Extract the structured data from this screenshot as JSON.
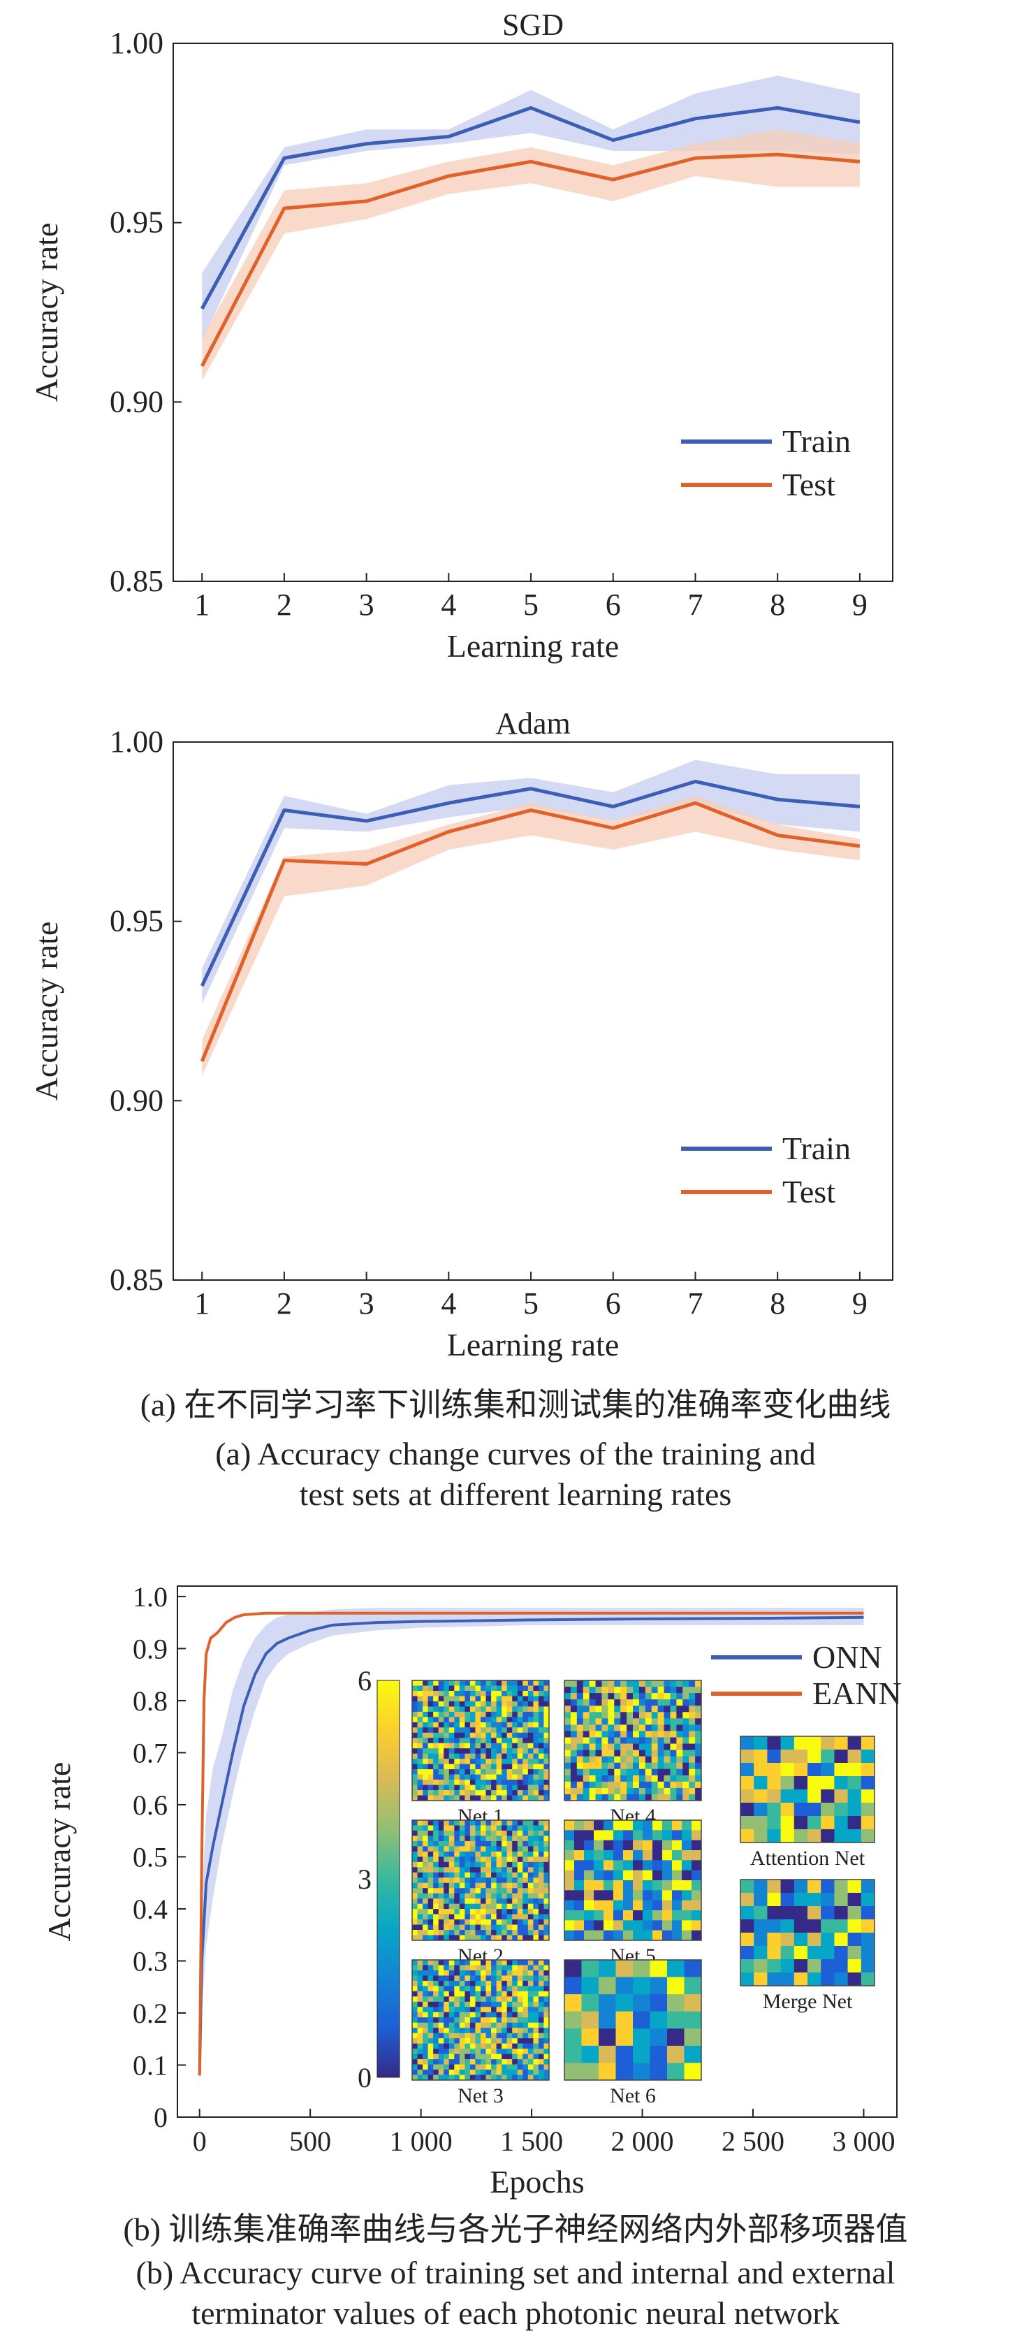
{
  "chart_data": [
    {
      "type": "line",
      "title": "SGD",
      "xlabel": "Learning rate",
      "ylabel": "Accuracy rate",
      "x": [
        1,
        2,
        3,
        4,
        5,
        6,
        7,
        8,
        9
      ],
      "xlim": [
        0.65,
        9.4
      ],
      "ylim": [
        0.85,
        1.0
      ],
      "yticks": [
        "0.85",
        "0.90",
        "0.95",
        "1.00"
      ],
      "legend_position": "lower-right",
      "series": [
        {
          "name": "Train",
          "color": "#3c5fb5",
          "band_color": "#c5cdf0",
          "values": [
            0.926,
            0.968,
            0.972,
            0.974,
            0.982,
            0.973,
            0.979,
            0.982,
            0.978
          ],
          "lower": [
            0.917,
            0.966,
            0.97,
            0.972,
            0.975,
            0.97,
            0.97,
            0.97,
            0.969
          ],
          "upper": [
            0.936,
            0.971,
            0.976,
            0.976,
            0.987,
            0.976,
            0.986,
            0.991,
            0.986
          ]
        },
        {
          "name": "Test",
          "color": "#e0622a",
          "band_color": "#f7cdb8",
          "values": [
            0.91,
            0.954,
            0.956,
            0.963,
            0.967,
            0.962,
            0.968,
            0.969,
            0.967
          ],
          "lower": [
            0.906,
            0.947,
            0.951,
            0.958,
            0.961,
            0.956,
            0.963,
            0.96,
            0.96
          ],
          "upper": [
            0.918,
            0.959,
            0.961,
            0.967,
            0.971,
            0.966,
            0.972,
            0.976,
            0.972
          ]
        }
      ]
    },
    {
      "type": "line",
      "title": "Adam",
      "xlabel": "Learning rate",
      "ylabel": "Accuracy rate",
      "x": [
        1,
        2,
        3,
        4,
        5,
        6,
        7,
        8,
        9
      ],
      "xlim": [
        0.65,
        9.4
      ],
      "ylim": [
        0.85,
        1.0
      ],
      "yticks": [
        "0.85",
        "0.90",
        "0.95",
        "1.00"
      ],
      "legend_position": "lower-right",
      "series": [
        {
          "name": "Train",
          "color": "#3c5fb5",
          "band_color": "#c5cdf0",
          "values": [
            0.932,
            0.981,
            0.978,
            0.983,
            0.987,
            0.982,
            0.989,
            0.984,
            0.982
          ],
          "lower": [
            0.927,
            0.976,
            0.975,
            0.979,
            0.982,
            0.978,
            0.983,
            0.977,
            0.975
          ],
          "upper": [
            0.937,
            0.985,
            0.98,
            0.988,
            0.99,
            0.986,
            0.995,
            0.991,
            0.991
          ]
        },
        {
          "name": "Test",
          "color": "#e0622a",
          "band_color": "#f7cdb8",
          "values": [
            0.911,
            0.967,
            0.966,
            0.975,
            0.981,
            0.976,
            0.983,
            0.974,
            0.971
          ],
          "lower": [
            0.907,
            0.957,
            0.96,
            0.97,
            0.974,
            0.97,
            0.975,
            0.97,
            0.967
          ],
          "upper": [
            0.917,
            0.968,
            0.97,
            0.977,
            0.983,
            0.978,
            0.985,
            0.977,
            0.973
          ]
        }
      ]
    },
    {
      "type": "line",
      "title": "",
      "xlabel": "Epochs",
      "ylabel": "Accuracy rate",
      "xlim": [
        -100,
        3150
      ],
      "ylim": [
        0,
        1.02
      ],
      "xticks": [
        0,
        500,
        1000,
        1500,
        2000,
        2500,
        3000
      ],
      "xtick_labels": [
        "0",
        "500",
        "1 000",
        "1 500",
        "2 000",
        "2 500",
        "3 000"
      ],
      "yticks": [
        "0",
        "0.1",
        "0.2",
        "0.3",
        "0.4",
        "0.5",
        "0.6",
        "0.7",
        "0.8",
        "0.9",
        "1.0"
      ],
      "legend_position": "top-right",
      "series": [
        {
          "name": "ONN",
          "color": "#3c5fb5",
          "band_color": "#c5cdf0",
          "x": [
            0,
            10,
            30,
            60,
            100,
            150,
            200,
            250,
            300,
            350,
            400,
            500,
            600,
            800,
            1000,
            1500,
            2000,
            2500,
            3000
          ],
          "values": [
            0.08,
            0.3,
            0.45,
            0.52,
            0.6,
            0.7,
            0.79,
            0.85,
            0.89,
            0.91,
            0.92,
            0.935,
            0.945,
            0.95,
            0.952,
            0.955,
            0.957,
            0.958,
            0.96
          ],
          "lower": [
            0.06,
            0.2,
            0.33,
            0.42,
            0.52,
            0.62,
            0.71,
            0.78,
            0.84,
            0.87,
            0.89,
            0.91,
            0.925,
            0.935,
            0.94,
            0.945,
            0.945,
            0.945,
            0.945
          ],
          "upper": [
            0.1,
            0.42,
            0.58,
            0.67,
            0.73,
            0.82,
            0.88,
            0.92,
            0.945,
            0.96,
            0.965,
            0.97,
            0.975,
            0.978,
            0.978,
            0.978,
            0.978,
            0.978,
            0.978
          ]
        },
        {
          "name": "EANN",
          "color": "#e0622a",
          "x": [
            0,
            10,
            20,
            30,
            50,
            80,
            120,
            160,
            200,
            300,
            500,
            1000,
            1500,
            2000,
            2500,
            3000
          ],
          "values": [
            0.08,
            0.5,
            0.8,
            0.89,
            0.92,
            0.93,
            0.95,
            0.96,
            0.965,
            0.968,
            0.968,
            0.968,
            0.968,
            0.968,
            0.968,
            0.968
          ]
        }
      ],
      "inset": {
        "colorbar_ticks": [
          "6",
          "3",
          "0"
        ],
        "panels": [
          "Net 1",
          "Net 2",
          "Net 3",
          "Net 4",
          "Net 5",
          "Net 6",
          "Attention Net",
          "Merge Net"
        ]
      }
    }
  ],
  "captions": {
    "a_cn": "(a) 在不同学习率下训练集和测试集的准确率变化曲线",
    "a_en_1": "(a) Accuracy change curves of the training and",
    "a_en_2": "test sets at different learning rates",
    "b_cn": "(b) 训练集准确率曲线与各光子神经网络内外部移项器值",
    "b_en_1": "(b) Accuracy curve of training set and internal and external",
    "b_en_2": "terminator values of each photonic neural network"
  }
}
